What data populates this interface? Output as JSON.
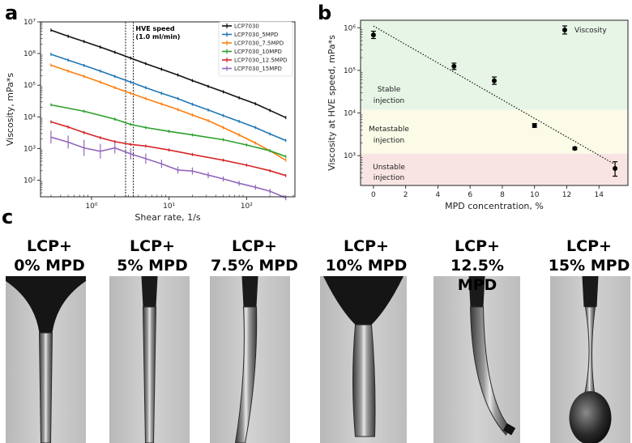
{
  "panels": {
    "a": "a",
    "b": "b",
    "c": "c"
  },
  "chart_data": [
    {
      "type": "line",
      "xlabel": "Shear rate, 1/s",
      "ylabel": "Viscosity, mPa*s",
      "xscale": "log",
      "yscale": "log",
      "xlim": [
        0.22,
        420
      ],
      "ylim": [
        30,
        10000000
      ],
      "x_ticks": [
        {
          "v": 1,
          "label": "10⁰"
        },
        {
          "v": 10,
          "label": "10¹"
        },
        {
          "v": 100,
          "label": "10²"
        }
      ],
      "y_ticks": [
        {
          "v": 100,
          "label": "10²"
        },
        {
          "v": 1000,
          "label": "10³"
        },
        {
          "v": 10000,
          "label": "10⁴"
        },
        {
          "v": 100000,
          "label": "10⁵"
        },
        {
          "v": 1000000,
          "label": "10⁶"
        },
        {
          "v": 10000000,
          "label": "10⁷"
        }
      ],
      "annotation": {
        "line1": "HVE speed",
        "line2": "(1.0 ml/min)",
        "x_range": [
          2.75,
          3.45
        ]
      },
      "legend_position": "top-right",
      "series": [
        {
          "name": "LCP7030",
          "color": "#111111",
          "x": [
            0.3,
            0.5,
            0.8,
            1.3,
            2.0,
            3.2,
            5.0,
            8.0,
            13,
            20,
            32,
            50,
            80,
            130,
            200,
            320
          ],
          "y": [
            5500000,
            3500000,
            2400000,
            1600000,
            1100000,
            720000,
            480000,
            320000,
            210000,
            140000,
            92000,
            62000,
            40000,
            26000,
            16000,
            9500
          ]
        },
        {
          "name": "LCP7030_5MPD",
          "color": "#1f77b4",
          "x": [
            0.3,
            0.5,
            0.8,
            1.3,
            2.0,
            3.2,
            5.0,
            8.0,
            13,
            20,
            32,
            50,
            80,
            130,
            200,
            320
          ],
          "y": [
            950000,
            620000,
            420000,
            280000,
            190000,
            125000,
            84000,
            56000,
            38000,
            25000,
            16500,
            11000,
            7200,
            4600,
            2900,
            1800
          ]
        },
        {
          "name": "LCP7030_7.5MPD",
          "color": "#ff7f0e",
          "x": [
            0.3,
            0.5,
            0.8,
            1.3,
            2.0,
            3.2,
            5.0,
            8.0,
            13,
            20,
            32,
            50,
            80,
            130,
            200,
            320
          ],
          "y": [
            430000,
            280000,
            190000,
            125000,
            84000,
            56000,
            38000,
            25500,
            17000,
            11500,
            7600,
            4600,
            2700,
            1500,
            850,
            430
          ]
        },
        {
          "name": "LCP7030_10MPD",
          "color": "#2ca02c",
          "x": [
            0.3,
            0.8,
            2.0,
            3.2,
            5.0,
            10,
            20,
            50,
            100,
            200,
            320
          ],
          "y": [
            24000,
            15000,
            8500,
            5800,
            4600,
            3500,
            2700,
            1900,
            1300,
            850,
            560
          ]
        },
        {
          "name": "LCP7030_12.5MPD",
          "color": "#d62728",
          "x": [
            0.3,
            0.5,
            0.8,
            1.3,
            2.0,
            3.2,
            5,
            10,
            20,
            50,
            100,
            200,
            320
          ],
          "y": [
            7000,
            4800,
            3200,
            2200,
            1650,
            1350,
            1200,
            900,
            650,
            430,
            300,
            200,
            140
          ]
        },
        {
          "name": "LCP7030_15MPD",
          "color": "#9467bd",
          "x": [
            0.3,
            0.5,
            0.8,
            1.3,
            2.0,
            3.2,
            5.0,
            8.0,
            13,
            20,
            32,
            50,
            80,
            130,
            200,
            320
          ],
          "y": [
            2300,
            1600,
            1050,
            820,
            1050,
            680,
            480,
            330,
            210,
            195,
            145,
            110,
            80,
            60,
            45,
            28
          ],
          "err": [
            1.6,
            1.6,
            1.8,
            1.7,
            1.5,
            1.5,
            1.45,
            1.35,
            1.3,
            1.3,
            1.25,
            1.2,
            1.2,
            1.2,
            1.2,
            1.2
          ]
        }
      ]
    },
    {
      "type": "scatter",
      "xlabel": "MPD concentration, %",
      "ylabel": "Viscosity at HVE speed, mPa*s",
      "yscale": "log",
      "xlim": [
        -0.8,
        15.8
      ],
      "ylim": [
        200,
        1500000
      ],
      "x_ticks": [
        0,
        2,
        4,
        6,
        8,
        10,
        12,
        14
      ],
      "y_ticks": [
        {
          "v": 1000,
          "label": "10³"
        },
        {
          "v": 10000,
          "label": "10⁴"
        },
        {
          "v": 100000,
          "label": "10⁵"
        },
        {
          "v": 1000000,
          "label": "10⁶"
        }
      ],
      "legend": "Viscosity",
      "legend_position": "top-right",
      "points": [
        {
          "x": 0,
          "y": 680000,
          "lo": 560000,
          "hi": 830000
        },
        {
          "x": 5,
          "y": 125000,
          "lo": 105000,
          "hi": 148000
        },
        {
          "x": 7.5,
          "y": 57000,
          "lo": 47000,
          "hi": 70000
        },
        {
          "x": 10,
          "y": 5100,
          "lo": 4600,
          "hi": 5650
        },
        {
          "x": 12.5,
          "y": 1480,
          "lo": 1380,
          "hi": 1580
        },
        {
          "x": 15,
          "y": 500,
          "lo": 330,
          "hi": 720
        }
      ],
      "trend": {
        "x": [
          0,
          15
        ],
        "y": [
          1100000,
          620
        ]
      },
      "zones": [
        {
          "label_l1": "Stable",
          "label_l2": "injection",
          "y_from": 12000,
          "y_to": 1500000,
          "color": "#e6f5e6"
        },
        {
          "label_l1": "Metastable",
          "label_l2": "injection",
          "y_from": 1100,
          "y_to": 12000,
          "color": "#fbfbe8"
        },
        {
          "label_l1": "Unstable",
          "label_l2": "injection",
          "y_from": 200,
          "y_to": 1100,
          "color": "#f9e4e4"
        }
      ]
    }
  ],
  "photos": [
    {
      "l1": "LCP+",
      "l2": "0% MPD"
    },
    {
      "l1": "LCP+",
      "l2": "5% MPD"
    },
    {
      "l1": "LCP+",
      "l2": "7.5% MPD"
    },
    {
      "l1": "LCP+",
      "l2": "10% MPD"
    },
    {
      "l1": "LCP+",
      "l2": "12.5% MPD"
    },
    {
      "l1": "LCP+",
      "l2": "15% MPD"
    }
  ]
}
